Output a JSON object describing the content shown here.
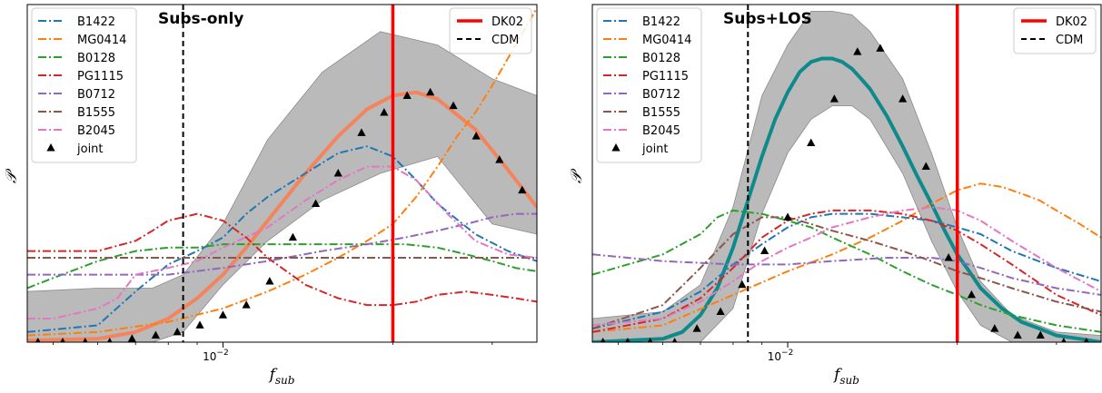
{
  "chart_data": [
    {
      "type": "line",
      "title": "Subs-only",
      "xlabel": "f",
      "xlabel_sub": "sub",
      "ylabel": "𝒫",
      "x_scale": "log",
      "xlim": [
        0.0045,
        0.036
      ],
      "ylim": [
        0,
        1
      ],
      "xticks": [
        {
          "value": 0.01,
          "base": "10",
          "exp": "−2"
        }
      ],
      "grid": false,
      "legend_left_position": "upper left",
      "legend_right_position": "upper right",
      "band": {
        "x": [
          0.0045,
          0.006,
          0.0075,
          0.0085,
          0.01,
          0.012,
          0.015,
          0.019,
          0.024,
          0.03,
          0.036
        ],
        "upper": [
          0.15,
          0.16,
          0.16,
          0.2,
          0.35,
          0.6,
          0.8,
          0.92,
          0.88,
          0.78,
          0.73
        ],
        "lower": [
          0.0,
          0.0,
          0.0,
          0.03,
          0.17,
          0.3,
          0.42,
          0.5,
          0.55,
          0.35,
          0.32
        ]
      },
      "fit_line": {
        "color": "#f4845c",
        "x": [
          0.0045,
          0.006,
          0.007,
          0.008,
          0.009,
          0.01,
          0.011,
          0.012,
          0.014,
          0.016,
          0.018,
          0.02,
          0.022,
          0.024,
          0.028,
          0.032,
          0.036
        ],
        "y": [
          0.005,
          0.01,
          0.03,
          0.07,
          0.13,
          0.2,
          0.28,
          0.36,
          0.5,
          0.61,
          0.69,
          0.73,
          0.74,
          0.72,
          0.63,
          0.51,
          0.4
        ]
      },
      "series": [
        {
          "name": "B1422",
          "color": "#1f77b4",
          "x": [
            0.0045,
            0.006,
            0.007,
            0.008,
            0.009,
            0.01,
            0.011,
            0.012,
            0.014,
            0.016,
            0.018,
            0.02,
            0.022,
            0.024,
            0.028,
            0.032,
            0.036
          ],
          "y": [
            0.03,
            0.05,
            0.15,
            0.23,
            0.27,
            0.31,
            0.38,
            0.43,
            0.5,
            0.56,
            0.58,
            0.55,
            0.48,
            0.41,
            0.32,
            0.27,
            0.24
          ]
        },
        {
          "name": "MG0414",
          "color": "#ff7f0e",
          "x": [
            0.0045,
            0.006,
            0.008,
            0.01,
            0.012,
            0.014,
            0.016,
            0.018,
            0.02,
            0.022,
            0.024,
            0.026,
            0.028,
            0.03,
            0.033,
            0.036
          ],
          "y": [
            0.02,
            0.03,
            0.06,
            0.1,
            0.15,
            0.2,
            0.25,
            0.3,
            0.35,
            0.43,
            0.52,
            0.61,
            0.68,
            0.76,
            0.88,
            0.99
          ]
        },
        {
          "name": "B0128",
          "color": "#2ca02c",
          "x": [
            0.0045,
            0.005,
            0.006,
            0.007,
            0.008,
            0.009,
            0.01,
            0.012,
            0.015,
            0.018,
            0.021,
            0.024,
            0.027,
            0.03,
            0.033,
            0.036
          ],
          "y": [
            0.16,
            0.19,
            0.24,
            0.27,
            0.28,
            0.28,
            0.29,
            0.29,
            0.29,
            0.29,
            0.29,
            0.28,
            0.26,
            0.24,
            0.22,
            0.21
          ]
        },
        {
          "name": "PG1115",
          "color": "#d62728",
          "x": [
            0.0045,
            0.006,
            0.007,
            0.0075,
            0.008,
            0.009,
            0.01,
            0.011,
            0.012,
            0.014,
            0.016,
            0.018,
            0.02,
            0.022,
            0.024,
            0.027,
            0.03,
            0.033,
            0.036
          ],
          "y": [
            0.27,
            0.27,
            0.3,
            0.33,
            0.36,
            0.38,
            0.36,
            0.31,
            0.25,
            0.17,
            0.13,
            0.11,
            0.11,
            0.12,
            0.14,
            0.15,
            0.14,
            0.13,
            0.12
          ]
        },
        {
          "name": "B0712",
          "color": "#9467bd",
          "x": [
            0.0045,
            0.006,
            0.008,
            0.01,
            0.012,
            0.015,
            0.018,
            0.021,
            0.024,
            0.027,
            0.03,
            0.033,
            0.036
          ],
          "y": [
            0.2,
            0.2,
            0.2,
            0.22,
            0.24,
            0.27,
            0.29,
            0.31,
            0.33,
            0.35,
            0.37,
            0.38,
            0.38
          ]
        },
        {
          "name": "B1555",
          "color": "#8c564b",
          "x": [
            0.0045,
            0.006,
            0.008,
            0.01,
            0.015,
            0.02,
            0.025,
            0.03,
            0.036
          ],
          "y": [
            0.25,
            0.25,
            0.25,
            0.25,
            0.25,
            0.25,
            0.25,
            0.25,
            0.25
          ]
        },
        {
          "name": "B2045",
          "color": "#e377c2",
          "x": [
            0.0045,
            0.005,
            0.006,
            0.0065,
            0.007,
            0.008,
            0.009,
            0.01,
            0.012,
            0.014,
            0.016,
            0.018,
            0.02,
            0.022,
            0.025,
            0.028,
            0.032,
            0.036
          ],
          "y": [
            0.07,
            0.07,
            0.1,
            0.13,
            0.2,
            0.22,
            0.24,
            0.28,
            0.34,
            0.42,
            0.48,
            0.52,
            0.52,
            0.48,
            0.38,
            0.3,
            0.26,
            0.25
          ]
        }
      ],
      "joint": {
        "name": "joint",
        "x": [
          0.0047,
          0.0052,
          0.0057,
          0.0063,
          0.0069,
          0.0076,
          0.0083,
          0.0091,
          0.01,
          0.011,
          0.0121,
          0.0133,
          0.0146,
          0.016,
          0.0176,
          0.0193,
          0.0212,
          0.0233,
          0.0256,
          0.0281,
          0.0309,
          0.0339
        ],
        "y": [
          0.0,
          0.0,
          0.0,
          0.0,
          0.01,
          0.02,
          0.03,
          0.05,
          0.08,
          0.11,
          0.18,
          0.31,
          0.41,
          0.5,
          0.62,
          0.68,
          0.73,
          0.74,
          0.7,
          0.61,
          0.54,
          0.45
        ]
      },
      "vlines": [
        {
          "name": "DK02",
          "x": 0.02,
          "color": "#ff0000",
          "style": "solid"
        },
        {
          "name": "CDM",
          "x": 0.0085,
          "color": "#000000",
          "style": "dashed"
        }
      ]
    },
    {
      "type": "line",
      "title": "Subs+LOS",
      "xlabel": "f",
      "xlabel_sub": "sub",
      "ylabel": "𝒫",
      "x_scale": "log",
      "xlim": [
        0.0045,
        0.036
      ],
      "ylim": [
        0,
        1
      ],
      "xticks": [
        {
          "value": 0.01,
          "base": "10",
          "exp": "−2"
        }
      ],
      "grid": false,
      "legend_left_position": "upper left",
      "legend_right_position": "upper right",
      "band": {
        "x": [
          0.0045,
          0.006,
          0.007,
          0.008,
          0.009,
          0.01,
          0.011,
          0.012,
          0.013,
          0.014,
          0.016,
          0.018,
          0.02,
          0.022,
          0.025,
          0.03,
          0.036
        ],
        "upper": [
          0.07,
          0.09,
          0.17,
          0.4,
          0.73,
          0.88,
          0.98,
          0.98,
          0.97,
          0.92,
          0.78,
          0.56,
          0.34,
          0.18,
          0.08,
          0.03,
          0.02
        ],
        "lower": [
          0.0,
          0.0,
          0.0,
          0.1,
          0.38,
          0.56,
          0.66,
          0.7,
          0.7,
          0.66,
          0.5,
          0.3,
          0.15,
          0.05,
          0.0,
          0.0,
          0.0
        ]
      },
      "fit_line": {
        "color": "#0f8a8a",
        "x": [
          0.0045,
          0.006,
          0.0065,
          0.007,
          0.0075,
          0.008,
          0.0085,
          0.009,
          0.0095,
          0.01,
          0.0105,
          0.011,
          0.0115,
          0.012,
          0.0125,
          0.013,
          0.0135,
          0.014,
          0.015,
          0.016,
          0.017,
          0.018,
          0.019,
          0.02,
          0.021,
          0.022,
          0.024,
          0.026,
          0.028,
          0.03,
          0.033,
          0.036
        ],
        "y": [
          0.0,
          0.01,
          0.03,
          0.08,
          0.16,
          0.28,
          0.42,
          0.55,
          0.66,
          0.74,
          0.8,
          0.83,
          0.84,
          0.84,
          0.83,
          0.81,
          0.78,
          0.75,
          0.67,
          0.58,
          0.49,
          0.41,
          0.33,
          0.26,
          0.21,
          0.16,
          0.1,
          0.06,
          0.04,
          0.02,
          0.01,
          0.0
        ]
      },
      "series": [
        {
          "name": "B1422",
          "color": "#1f77b4",
          "x": [
            0.0045,
            0.006,
            0.007,
            0.008,
            0.009,
            0.01,
            0.011,
            0.012,
            0.014,
            0.016,
            0.018,
            0.02,
            0.022,
            0.025,
            0.03,
            0.036
          ],
          "y": [
            0.04,
            0.09,
            0.15,
            0.23,
            0.29,
            0.34,
            0.37,
            0.38,
            0.38,
            0.37,
            0.36,
            0.34,
            0.32,
            0.27,
            0.22,
            0.18
          ]
        },
        {
          "name": "MG0414",
          "color": "#ff7f0e",
          "x": [
            0.0045,
            0.006,
            0.008,
            0.01,
            0.012,
            0.014,
            0.016,
            0.018,
            0.02,
            0.022,
            0.024,
            0.026,
            0.028,
            0.03,
            0.033,
            0.036
          ],
          "y": [
            0.03,
            0.05,
            0.14,
            0.21,
            0.26,
            0.31,
            0.36,
            0.41,
            0.45,
            0.47,
            0.46,
            0.44,
            0.42,
            0.39,
            0.35,
            0.31
          ]
        },
        {
          "name": "B0128",
          "color": "#2ca02c",
          "x": [
            0.0045,
            0.006,
            0.007,
            0.0075,
            0.008,
            0.009,
            0.01,
            0.011,
            0.012,
            0.014,
            0.016,
            0.018,
            0.02,
            0.022,
            0.025,
            0.03,
            0.036
          ],
          "y": [
            0.2,
            0.26,
            0.32,
            0.37,
            0.39,
            0.38,
            0.36,
            0.34,
            0.31,
            0.26,
            0.21,
            0.17,
            0.14,
            0.11,
            0.08,
            0.05,
            0.03
          ]
        },
        {
          "name": "PG1115",
          "color": "#d62728",
          "x": [
            0.0045,
            0.006,
            0.007,
            0.008,
            0.009,
            0.01,
            0.011,
            0.012,
            0.014,
            0.016,
            0.018,
            0.02,
            0.022,
            0.025,
            0.03,
            0.036
          ],
          "y": [
            0.03,
            0.07,
            0.13,
            0.22,
            0.31,
            0.36,
            0.38,
            0.39,
            0.39,
            0.38,
            0.36,
            0.33,
            0.29,
            0.23,
            0.14,
            0.08
          ]
        },
        {
          "name": "B0712",
          "color": "#9467bd",
          "x": [
            0.0045,
            0.006,
            0.008,
            0.01,
            0.012,
            0.015,
            0.018,
            0.02,
            0.022,
            0.025,
            0.03,
            0.036
          ],
          "y": [
            0.26,
            0.24,
            0.23,
            0.23,
            0.24,
            0.25,
            0.25,
            0.24,
            0.22,
            0.19,
            0.16,
            0.14
          ]
        },
        {
          "name": "B1555",
          "color": "#8c564b",
          "x": [
            0.0045,
            0.006,
            0.007,
            0.008,
            0.009,
            0.01,
            0.011,
            0.012,
            0.014,
            0.016,
            0.018,
            0.02,
            0.022,
            0.025,
            0.03,
            0.036
          ],
          "y": [
            0.04,
            0.11,
            0.22,
            0.32,
            0.37,
            0.37,
            0.35,
            0.33,
            0.3,
            0.27,
            0.24,
            0.21,
            0.19,
            0.16,
            0.12,
            0.09
          ]
        },
        {
          "name": "B2045",
          "color": "#e377c2",
          "x": [
            0.0045,
            0.006,
            0.007,
            0.008,
            0.009,
            0.01,
            0.011,
            0.012,
            0.014,
            0.016,
            0.018,
            0.02,
            0.022,
            0.025,
            0.03,
            0.036
          ],
          "y": [
            0.05,
            0.07,
            0.12,
            0.18,
            0.24,
            0.28,
            0.31,
            0.34,
            0.37,
            0.39,
            0.4,
            0.39,
            0.36,
            0.3,
            0.22,
            0.15
          ]
        }
      ],
      "joint": {
        "name": "joint",
        "x": [
          0.0047,
          0.0052,
          0.0057,
          0.0063,
          0.0069,
          0.0076,
          0.0083,
          0.0091,
          0.01,
          0.011,
          0.0121,
          0.0133,
          0.0146,
          0.016,
          0.0176,
          0.0193,
          0.0212,
          0.0233,
          0.0256,
          0.0281,
          0.0309,
          0.0339
        ],
        "y": [
          0.0,
          0.0,
          0.0,
          0.0,
          0.04,
          0.09,
          0.17,
          0.27,
          0.37,
          0.59,
          0.72,
          0.86,
          0.87,
          0.72,
          0.52,
          0.25,
          0.14,
          0.04,
          0.02,
          0.02,
          0.0,
          0.0
        ]
      },
      "vlines": [
        {
          "name": "DK02",
          "x": 0.02,
          "color": "#ff0000",
          "style": "solid"
        },
        {
          "name": "CDM",
          "x": 0.0085,
          "color": "#000000",
          "style": "dashed"
        }
      ]
    }
  ]
}
